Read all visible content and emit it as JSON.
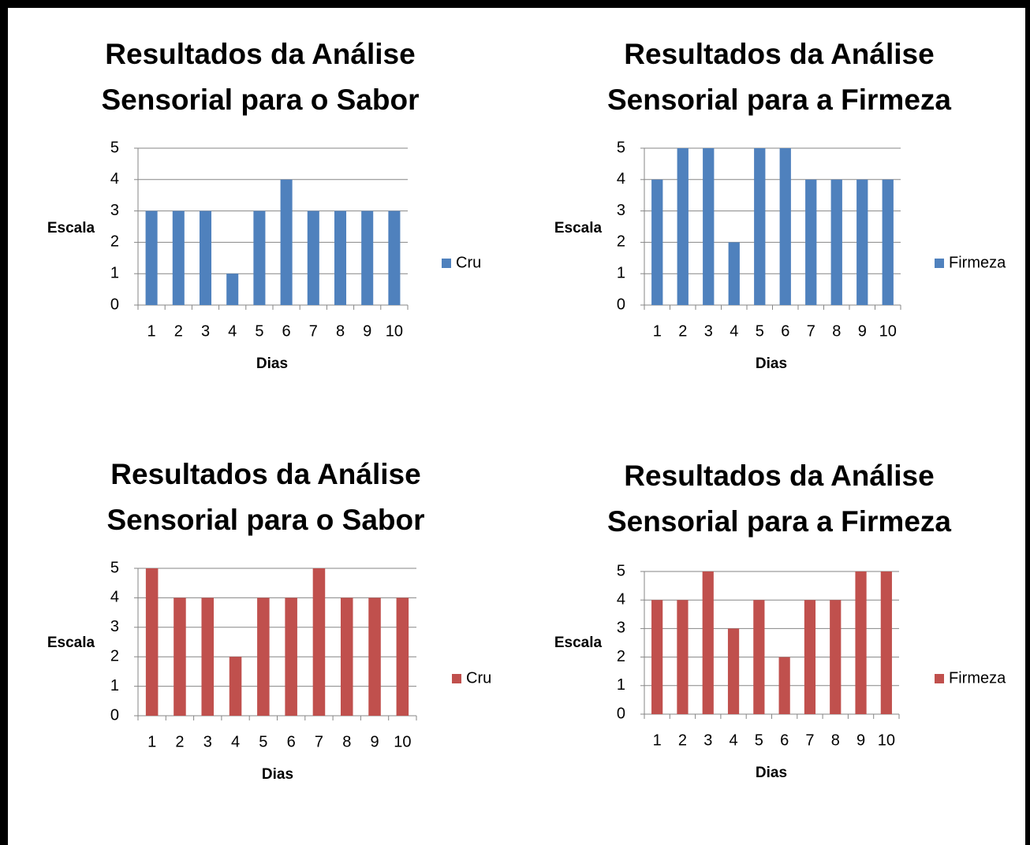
{
  "chart_data": [
    {
      "type": "bar",
      "title": "Resultados da Análise Sensorial para o Sabor",
      "xlabel": "Dias",
      "ylabel": "Escala",
      "categories": [
        "1",
        "2",
        "3",
        "4",
        "5",
        "6",
        "7",
        "8",
        "9",
        "10"
      ],
      "series": [
        {
          "name": "Cru",
          "color": "#4f81bd",
          "values": [
            3,
            3,
            3,
            1,
            3,
            4,
            3,
            3,
            3,
            3
          ]
        }
      ],
      "ylim": [
        0,
        5
      ],
      "yticks": [
        0,
        1,
        2,
        3,
        4,
        5
      ],
      "grid": true,
      "legend": "right"
    },
    {
      "type": "bar",
      "title": "Resultados da Análise Sensorial para a Firmeza",
      "xlabel": "Dias",
      "ylabel": "Escala",
      "categories": [
        "1",
        "2",
        "3",
        "4",
        "5",
        "6",
        "7",
        "8",
        "9",
        "10"
      ],
      "series": [
        {
          "name": "Firmeza",
          "color": "#4f81bd",
          "values": [
            4,
            5,
            5,
            2,
            5,
            5,
            4,
            4,
            4,
            4
          ]
        }
      ],
      "ylim": [
        0,
        5
      ],
      "yticks": [
        0,
        1,
        2,
        3,
        4,
        5
      ],
      "grid": true,
      "legend": "right"
    },
    {
      "type": "bar",
      "title": "Resultados da Análise Sensorial para o Sabor",
      "xlabel": "Dias",
      "ylabel": "Escala",
      "categories": [
        "1",
        "2",
        "3",
        "4",
        "5",
        "6",
        "7",
        "8",
        "9",
        "10"
      ],
      "series": [
        {
          "name": "Cru",
          "color": "#c0504d",
          "values": [
            5,
            4,
            4,
            2,
            4,
            4,
            5,
            4,
            4,
            4
          ]
        }
      ],
      "ylim": [
        0,
        5
      ],
      "yticks": [
        0,
        1,
        2,
        3,
        4,
        5
      ],
      "grid": true,
      "legend": "right"
    },
    {
      "type": "bar",
      "title": "Resultados da Análise Sensorial para a Firmeza",
      "xlabel": "Dias",
      "ylabel": "Escala",
      "categories": [
        "1",
        "2",
        "3",
        "4",
        "5",
        "6",
        "7",
        "8",
        "9",
        "10"
      ],
      "series": [
        {
          "name": "Firmeza",
          "color": "#c0504d",
          "values": [
            4,
            4,
            5,
            3,
            4,
            2,
            4,
            4,
            5,
            5
          ]
        }
      ],
      "ylim": [
        0,
        5
      ],
      "yticks": [
        0,
        1,
        2,
        3,
        4,
        5
      ],
      "grid": true,
      "legend": "right"
    }
  ]
}
